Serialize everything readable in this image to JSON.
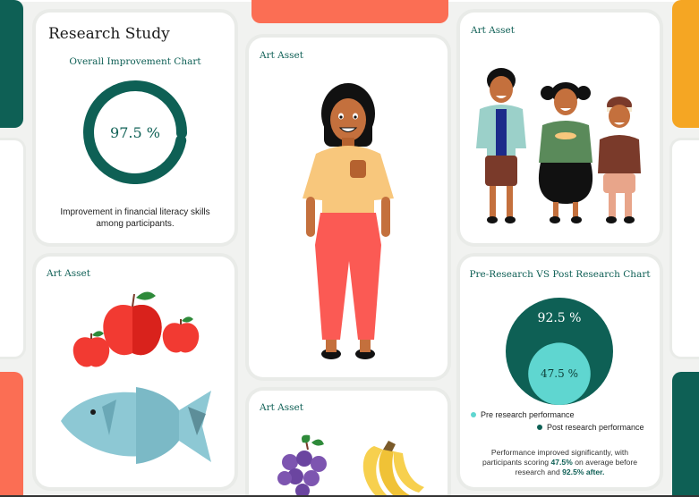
{
  "colors": {
    "teal_dark": "#0e6055",
    "teal_light": "#5fd6d0",
    "coral": "#fb6e54",
    "orange": "#f5a623",
    "label_green": "#0e5f55"
  },
  "research_card": {
    "title": "Research Study",
    "subtitle": "Overall Improvement Chart",
    "percent_label": "97.5 %",
    "percent_value": 97.5,
    "caption_line1": "Improvement in financial literacy skills",
    "caption_line2": "among participants."
  },
  "art_cards": {
    "girl_label": "Art Asset",
    "kids_label": "Art Asset",
    "food_label": "Art Asset",
    "fruit_label": "Art Asset"
  },
  "comparison_card": {
    "title": "Pre-Research VS Post Research Chart",
    "chart_data": {
      "type": "nested-circle",
      "series": [
        {
          "name": "Post research performance",
          "value": 92.5,
          "label": "92.5 %"
        },
        {
          "name": "Pre research performance",
          "value": 47.5,
          "label": "47.5 %"
        }
      ]
    },
    "legend_pre": "Pre research performance",
    "legend_post": "Post research performance",
    "note_line1": "Performance improved significantly, with",
    "note_line2a": "participants scoring ",
    "note_line2b": "47.5%",
    "note_line2c": " on average before",
    "note_line3a": "research and ",
    "note_line3b": "92.5% after."
  }
}
